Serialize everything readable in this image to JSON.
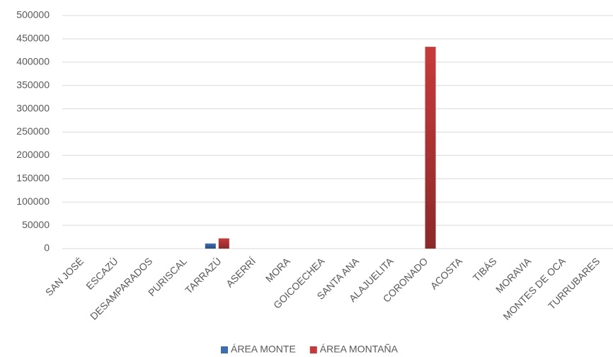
{
  "chart_data": {
    "type": "bar",
    "categories": [
      "SAN JOSÉ",
      "ESCAZÚ",
      "DESAMPARADOS",
      "PURISCAL",
      "TARRAZÚ",
      "ASERRÍ",
      "MORA",
      "GOICOECHEA",
      "SANTA ANA",
      "ALAJUELITA",
      "CORONADO",
      "ACOSTA",
      "TIBÁS",
      "MORAVIA",
      "MONTES DE OCA",
      "TURRUBARES"
    ],
    "series": [
      {
        "name": "ÁREA MONTE",
        "color": "#3a6fb5",
        "values": [
          0,
          0,
          0,
          0,
          11000,
          0,
          0,
          0,
          0,
          0,
          0,
          0,
          0,
          0,
          0,
          0
        ]
      },
      {
        "name": "ÁREA MONTAÑA",
        "color": "#c83a3a",
        "values": [
          0,
          0,
          0,
          0,
          22000,
          0,
          0,
          0,
          0,
          0,
          433000,
          0,
          0,
          0,
          0,
          0
        ]
      }
    ],
    "ylim": [
      0,
      500000
    ],
    "yticks": [
      0,
      50000,
      100000,
      150000,
      200000,
      250000,
      300000,
      350000,
      400000,
      450000,
      500000
    ],
    "grid": true,
    "legend": "bottom"
  }
}
